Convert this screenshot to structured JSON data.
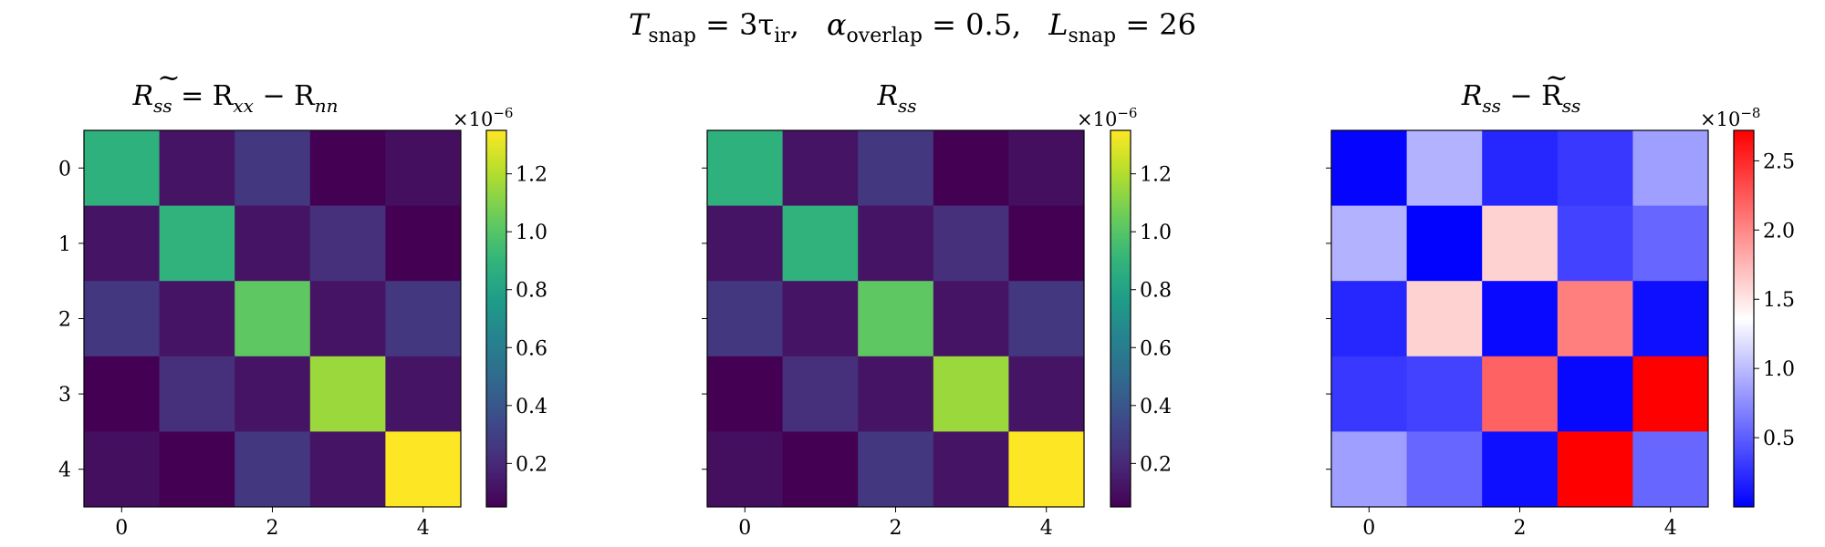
{
  "suptitle": {
    "t_main": "T",
    "t_sub": "snap",
    "t_rest": " = 3τ",
    "t_rest_sub": "ir",
    "t_sep1": ",",
    "a_main": "α",
    "a_sub": "overlap",
    "a_rest": " = 0.5,",
    "l_main": "L",
    "l_sub": "snap",
    "l_rest": " = 26"
  },
  "chart_data": [
    {
      "type": "heatmap",
      "title_parts": {
        "r": "R",
        "tilde": "~",
        "sub": "ss",
        "eq": " = R",
        "sub_xx": "xx",
        "minus": " − R",
        "sub_nn": "nn"
      },
      "title": "R̃_ss = R_xx − R_nn",
      "x_ticks": [
        "0",
        "2",
        "4"
      ],
      "y_ticks": [
        "0",
        "1",
        "2",
        "3",
        "4"
      ],
      "show_y_tick_labels": true,
      "colormap": "viridis",
      "clim": [
        0.05,
        1.35
      ],
      "colorbar_ticks": [
        "0.2",
        "0.4",
        "0.6",
        "0.8",
        "1.0",
        "1.2"
      ],
      "colorbar_tick_values": [
        0.2,
        0.4,
        0.6,
        0.8,
        1.0,
        1.2
      ],
      "colorbar_scale_base": "×10",
      "colorbar_scale_exp": "−6",
      "values": [
        [
          0.88,
          0.12,
          0.26,
          0.05,
          0.1
        ],
        [
          0.12,
          0.89,
          0.12,
          0.23,
          0.05
        ],
        [
          0.26,
          0.12,
          1.02,
          0.12,
          0.26
        ],
        [
          0.05,
          0.23,
          0.12,
          1.15,
          0.12
        ],
        [
          0.1,
          0.05,
          0.26,
          0.12,
          1.35
        ]
      ]
    },
    {
      "type": "heatmap",
      "title_parts": {
        "r": "R",
        "sub": "ss"
      },
      "title": "R_ss",
      "x_ticks": [
        "0",
        "2",
        "4"
      ],
      "y_ticks": [
        "0",
        "1",
        "2",
        "3",
        "4"
      ],
      "show_y_tick_labels": false,
      "colormap": "viridis",
      "clim": [
        0.05,
        1.35
      ],
      "colorbar_ticks": [
        "0.2",
        "0.4",
        "0.6",
        "0.8",
        "1.0",
        "1.2"
      ],
      "colorbar_tick_values": [
        0.2,
        0.4,
        0.6,
        0.8,
        1.0,
        1.2
      ],
      "colorbar_scale_base": "×10",
      "colorbar_scale_exp": "−6",
      "values": [
        [
          0.88,
          0.12,
          0.26,
          0.05,
          0.1
        ],
        [
          0.12,
          0.89,
          0.12,
          0.23,
          0.05
        ],
        [
          0.26,
          0.12,
          1.02,
          0.12,
          0.26
        ],
        [
          0.05,
          0.23,
          0.12,
          1.15,
          0.12
        ],
        [
          0.1,
          0.05,
          0.26,
          0.12,
          1.35
        ]
      ]
    },
    {
      "type": "heatmap",
      "title_parts": {
        "r": "R",
        "sub": "ss",
        "minus": " − R",
        "tilde": "~",
        "sub2": "ss"
      },
      "title": "R_ss − R̃_ss",
      "x_ticks": [
        "0",
        "2",
        "4"
      ],
      "y_ticks": [
        "0",
        "1",
        "2",
        "3",
        "4"
      ],
      "show_y_tick_labels": false,
      "colormap": "bwr",
      "clim": [
        0.0,
        2.72
      ],
      "colorbar_ticks": [
        "0.5",
        "1.0",
        "1.5",
        "2.0",
        "2.5"
      ],
      "colorbar_tick_values": [
        0.5,
        1.0,
        1.5,
        2.0,
        2.5
      ],
      "colorbar_scale_base": "×10",
      "colorbar_scale_exp": "−8",
      "values": [
        [
          0.02,
          0.95,
          0.2,
          0.3,
          0.85
        ],
        [
          0.95,
          0.01,
          1.6,
          0.35,
          0.55
        ],
        [
          0.2,
          1.6,
          0.05,
          2.05,
          0.08
        ],
        [
          0.3,
          0.35,
          2.2,
          0.04,
          2.72
        ],
        [
          0.85,
          0.55,
          0.08,
          2.72,
          0.55
        ]
      ]
    }
  ]
}
